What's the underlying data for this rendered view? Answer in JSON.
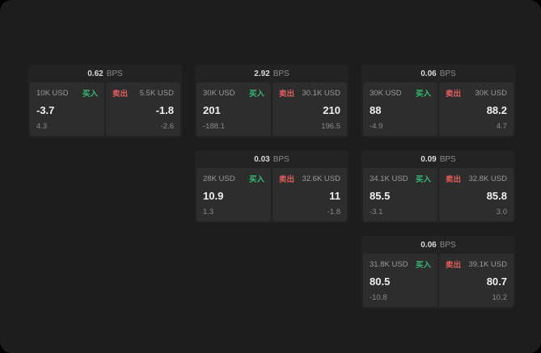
{
  "labels": {
    "bps": "BPS",
    "buy": "买入",
    "sell": "卖出"
  },
  "colors": {
    "buy": "#35b871",
    "sell": "#e25d5d",
    "background": "#1d1d1d",
    "card": "#232323",
    "panel": "#2d2d2d"
  },
  "cards": [
    {
      "bps": "0.62",
      "col": 1,
      "row": 1,
      "buy": {
        "size": "10K USD",
        "price": "-3.7",
        "delta": "4.3"
      },
      "sell": {
        "size": "5.5K USD",
        "price": "-1.8",
        "delta": "-2.6"
      }
    },
    {
      "bps": "2.92",
      "col": 2,
      "row": 1,
      "buy": {
        "size": "30K USD",
        "price": "201",
        "delta": "-188.1"
      },
      "sell": {
        "size": "30.1K USD",
        "price": "210",
        "delta": "196.5"
      }
    },
    {
      "bps": "0.06",
      "col": 3,
      "row": 1,
      "buy": {
        "size": "30K USD",
        "price": "88",
        "delta": "-4.9"
      },
      "sell": {
        "size": "30K USD",
        "price": "88.2",
        "delta": "4.7"
      }
    },
    {
      "bps": "0.03",
      "col": 2,
      "row": 2,
      "buy": {
        "size": "28K USD",
        "price": "10.9",
        "delta": "1.3"
      },
      "sell": {
        "size": "32.6K USD",
        "price": "11",
        "delta": "-1.8"
      }
    },
    {
      "bps": "0.09",
      "col": 3,
      "row": 2,
      "buy": {
        "size": "34.1K USD",
        "price": "85.5",
        "delta": "-3.1"
      },
      "sell": {
        "size": "32.8K USD",
        "price": "85.8",
        "delta": "3.0"
      }
    },
    {
      "bps": "0.06",
      "col": 3,
      "row": 3,
      "buy": {
        "size": "31.8K USD",
        "price": "80.5",
        "delta": "-10.8"
      },
      "sell": {
        "size": "39.1K USD",
        "price": "80.7",
        "delta": "10.2"
      }
    }
  ]
}
